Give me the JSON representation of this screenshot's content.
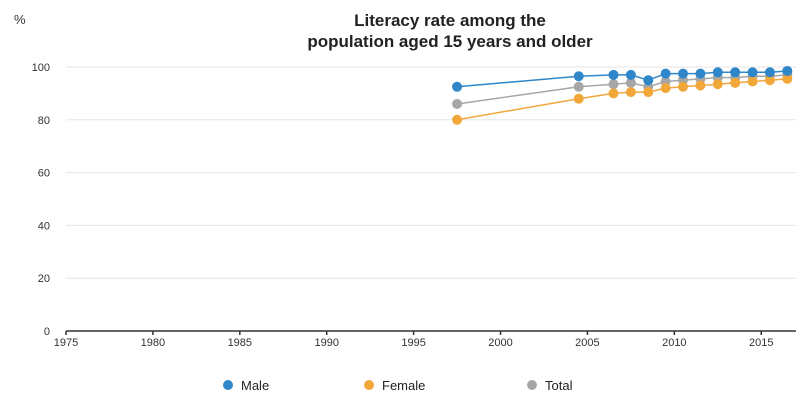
{
  "chart_data": {
    "type": "line",
    "title_lines": [
      "Literacy rate among the",
      "population aged 15 years and older"
    ],
    "unit_label": "%",
    "xlabel": "",
    "ylabel": "",
    "xlim": [
      1975,
      2017
    ],
    "ylim": [
      0,
      100
    ],
    "x_ticks": [
      1975,
      1980,
      1985,
      1990,
      1995,
      2000,
      2005,
      2010,
      2015
    ],
    "y_ticks": [
      0,
      20,
      40,
      60,
      80,
      100
    ],
    "grid": true,
    "legend_position": "bottom",
    "series": [
      {
        "name": "Male",
        "color": "#2f86c8",
        "points": [
          [
            1997.5,
            92.5
          ],
          [
            2004.5,
            96.5
          ],
          [
            2006.5,
            97.0
          ],
          [
            2007.5,
            97.0
          ],
          [
            2008.5,
            95.0
          ],
          [
            2009.5,
            97.5
          ],
          [
            2010.5,
            97.5
          ],
          [
            2011.5,
            97.5
          ],
          [
            2012.5,
            98.0
          ],
          [
            2013.5,
            98.0
          ],
          [
            2014.5,
            98.0
          ],
          [
            2015.5,
            98.0
          ],
          [
            2016.5,
            98.5
          ]
        ]
      },
      {
        "name": "Female",
        "color": "#f2a73b",
        "points": [
          [
            1997.5,
            80.0
          ],
          [
            2004.5,
            88.0
          ],
          [
            2006.5,
            90.0
          ],
          [
            2007.5,
            90.5
          ],
          [
            2008.5,
            90.5
          ],
          [
            2009.5,
            92.0
          ],
          [
            2010.5,
            92.5
          ],
          [
            2011.5,
            93.0
          ],
          [
            2012.5,
            93.5
          ],
          [
            2013.5,
            94.0
          ],
          [
            2014.5,
            94.5
          ],
          [
            2015.5,
            95.0
          ],
          [
            2016.5,
            95.5
          ]
        ]
      },
      {
        "name": "Total",
        "color": "#a6a6a6",
        "points": [
          [
            1997.5,
            86.0
          ],
          [
            2004.5,
            92.5
          ],
          [
            2006.5,
            93.5
          ],
          [
            2007.5,
            94.0
          ],
          [
            2008.5,
            92.5
          ],
          [
            2009.5,
            94.5
          ],
          [
            2010.5,
            95.0
          ],
          [
            2011.5,
            95.5
          ],
          [
            2012.5,
            96.0
          ],
          [
            2013.5,
            96.0
          ],
          [
            2014.5,
            96.5
          ],
          [
            2015.5,
            96.5
          ],
          [
            2016.5,
            97.0
          ]
        ]
      }
    ]
  }
}
